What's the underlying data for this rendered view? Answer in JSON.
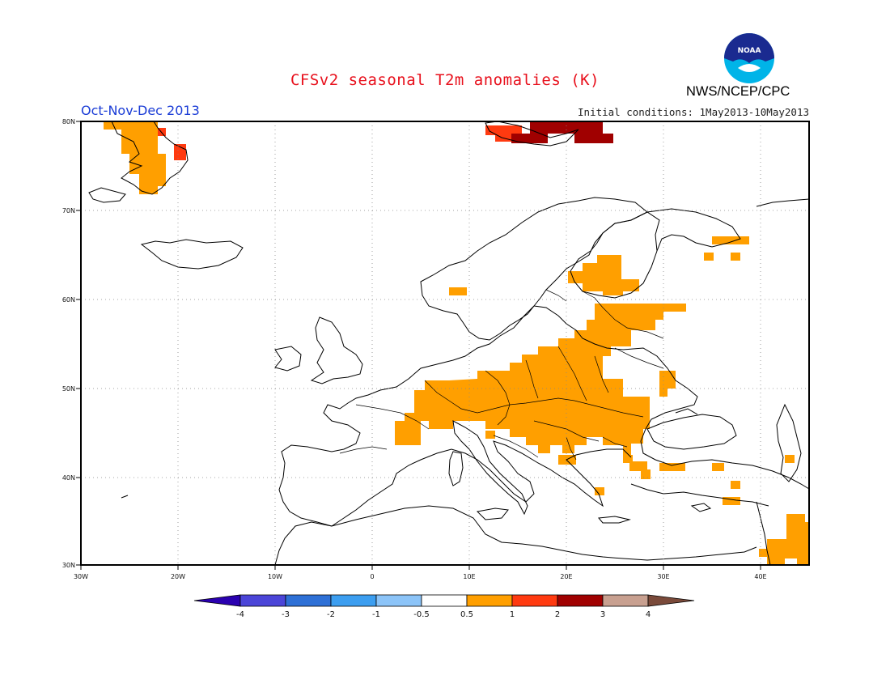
{
  "header": {
    "title": "CFSv2 seasonal T2m anomalies (K)",
    "season": "Oct-Nov-Dec 2013",
    "initial_conditions": "Initial conditions: 1May2013-10May2013",
    "agency": "NWS/NCEP/CPC",
    "logo_text": "NOAA"
  },
  "map": {
    "region": "Europe",
    "lon_range": [
      -30,
      45
    ],
    "lat_range": [
      30,
      80
    ],
    "lat_labels": [
      "30N",
      "40N",
      "50N",
      "60N",
      "70N",
      "80N"
    ],
    "lon_labels": [
      "30W",
      "20W",
      "10W",
      "0",
      "10E",
      "20E",
      "30E",
      "40E"
    ],
    "colors": {
      "anomaly_0_5_to_1": "#ff9f00",
      "anomaly_1_to_2": "#ff3a10",
      "anomaly_2_to_3": "#a00000",
      "coastline": "#000000",
      "grid": "#888888"
    }
  },
  "colorbar": {
    "labels": [
      "-4",
      "-3",
      "-2",
      "-1",
      "-0.5",
      "0.5",
      "1",
      "2",
      "3",
      "4"
    ],
    "colors": [
      "#2a00b0",
      "#4b45d8",
      "#2e70d6",
      "#3c9ef0",
      "#8cc4f8",
      "#ffffff",
      "#ff9f00",
      "#ff3a10",
      "#a00000",
      "#c8a090",
      "#7a4a3a"
    ]
  }
}
